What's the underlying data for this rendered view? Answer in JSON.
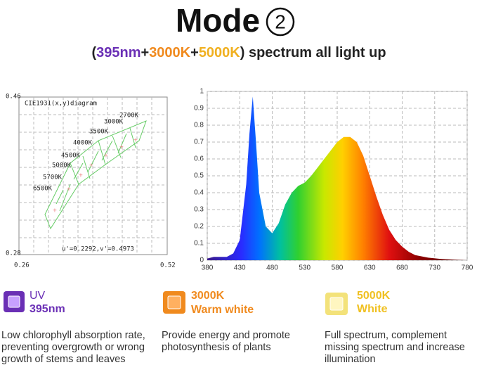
{
  "header": {
    "title": "Mode",
    "badge": "2",
    "subtitle_parts": [
      "(",
      "395nm",
      "+",
      "3000K",
      "+",
      "5000K",
      ") spectrum all light up"
    ]
  },
  "cie": {
    "caption": "CIE1931(x,y)diagram",
    "y_top": "0.46",
    "y_bottom": "0.28",
    "x_left": "0.26",
    "x_right": "0.52",
    "cct_labels": [
      "2700K",
      "3000K",
      "3500K",
      "4000K",
      "4500K",
      "5000K",
      "5700K",
      "6500K"
    ],
    "readout": "u'=0.2292,v'=0.4973"
  },
  "chart_data": {
    "type": "area",
    "x": [
      380,
      390,
      400,
      410,
      420,
      430,
      440,
      445,
      450,
      455,
      460,
      470,
      480,
      490,
      500,
      510,
      520,
      530,
      540,
      550,
      560,
      570,
      580,
      590,
      600,
      610,
      620,
      630,
      640,
      650,
      660,
      670,
      680,
      690,
      700,
      720,
      740,
      760,
      780
    ],
    "values": [
      0.01,
      0.02,
      0.02,
      0.02,
      0.04,
      0.12,
      0.45,
      0.75,
      0.97,
      0.7,
      0.4,
      0.2,
      0.16,
      0.22,
      0.33,
      0.4,
      0.44,
      0.46,
      0.5,
      0.55,
      0.6,
      0.65,
      0.7,
      0.73,
      0.73,
      0.7,
      0.62,
      0.5,
      0.38,
      0.27,
      0.18,
      0.12,
      0.08,
      0.05,
      0.03,
      0.015,
      0.007,
      0.003,
      0
    ],
    "xlim": [
      380,
      780
    ],
    "ylim": [
      0,
      1
    ],
    "xticks": [
      380,
      430,
      480,
      530,
      580,
      630,
      680,
      730,
      780
    ],
    "yticks": [
      0,
      0.1,
      0.2,
      0.3,
      0.4,
      0.5,
      0.6,
      0.7,
      0.8,
      0.9,
      1
    ],
    "grid": true
  },
  "features": [
    {
      "name": "UV",
      "detail": "395nm",
      "text": [
        "Low chlorophyll absorption rate,",
        "preventing overgrowth or wrong",
        "growth of stems and leaves"
      ]
    },
    {
      "name": "3000K",
      "detail": "Warm white",
      "text": [
        "Provide energy and promote",
        "photosynthesis of plants"
      ]
    },
    {
      "name": "5000K",
      "detail": "White",
      "text": [
        "Full spectrum, complement",
        "missing spectrum and increase",
        "illumination"
      ]
    }
  ]
}
